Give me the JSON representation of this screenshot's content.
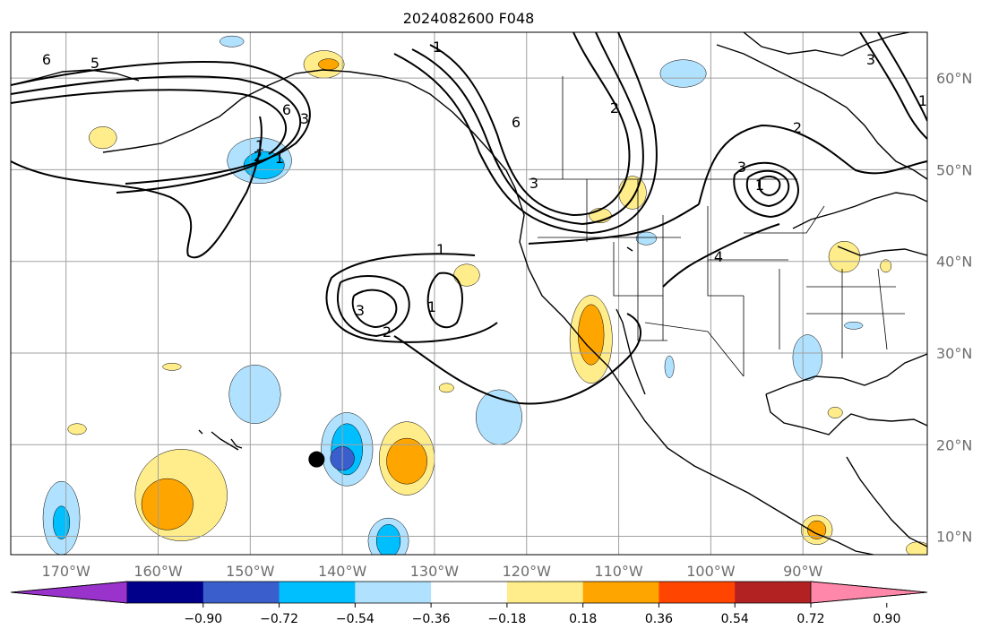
{
  "title": "2024082600 F048",
  "lat_ticks": [
    {
      "label": "60°N",
      "lat": 60
    },
    {
      "label": "50°N",
      "lat": 50
    },
    {
      "label": "40°N",
      "lat": 40
    },
    {
      "label": "30°N",
      "lat": 30
    },
    {
      "label": "20°N",
      "lat": 20
    },
    {
      "label": "10°N",
      "lat": 10
    }
  ],
  "lon_ticks": [
    {
      "label": "170°W",
      "lon": -170
    },
    {
      "label": "160°W",
      "lon": -160
    },
    {
      "label": "150°W",
      "lon": -150
    },
    {
      "label": "140°W",
      "lon": -140
    },
    {
      "label": "130°W",
      "lon": -130
    },
    {
      "label": "120°W",
      "lon": -120
    },
    {
      "label": "110°W",
      "lon": -110
    },
    {
      "label": "100°W",
      "lon": -100
    },
    {
      "label": "90°W",
      "lon": -90
    }
  ],
  "extent": {
    "lon_min": -176,
    "lon_max": -76.5,
    "lat_min": 8,
    "lat_max": 65
  },
  "colorbar": {
    "ticks": [
      "−0.90",
      "−0.72",
      "−0.54",
      "−0.36",
      "−0.18",
      "0.18",
      "0.36",
      "0.54",
      "0.72",
      "0.90"
    ],
    "colors": [
      "#9933cc",
      "#00008b",
      "#3a5fcd",
      "#00bfff",
      "#b0e2ff",
      "#ffffff",
      "#ffec8b",
      "#ffa500",
      "#ff4500",
      "#b22222",
      "#ff88aa"
    ]
  },
  "contour_labels": [
    "6",
    "5",
    "1",
    "6",
    "3",
    "2",
    "1",
    "1",
    "6",
    "3",
    "2",
    "3",
    "1",
    "2",
    "3",
    "1",
    "1",
    "2",
    "3",
    "4",
    "1"
  ],
  "marker": {
    "lon": -142.8,
    "lat": 18.4
  },
  "fills": [
    {
      "color": "#b0e2ff",
      "lon": -149,
      "lat": 51,
      "rx": 3.5,
      "ry": 2.5
    },
    {
      "color": "#00bfff",
      "lon": -148.5,
      "lat": 50.5,
      "rx": 2.2,
      "ry": 1.5
    },
    {
      "color": "#b0e2ff",
      "lon": -149.5,
      "lat": 25.5,
      "rx": 2.8,
      "ry": 3.2
    },
    {
      "color": "#b0e2ff",
      "lon": -139.5,
      "lat": 19.5,
      "rx": 2.8,
      "ry": 4
    },
    {
      "color": "#00bfff",
      "lon": -139.5,
      "lat": 19.5,
      "rx": 1.7,
      "ry": 2.8
    },
    {
      "color": "#3a5fcd",
      "lon": -140,
      "lat": 18.5,
      "rx": 1.3,
      "ry": 1.3
    },
    {
      "color": "#ffec8b",
      "lon": -133,
      "lat": 18.5,
      "rx": 3,
      "ry": 4
    },
    {
      "color": "#ffa500",
      "lon": -133,
      "lat": 18.2,
      "rx": 2.2,
      "ry": 2.5
    },
    {
      "color": "#ffec8b",
      "lon": -157.5,
      "lat": 14.5,
      "rx": 5,
      "ry": 5
    },
    {
      "color": "#ffa500",
      "lon": -159,
      "lat": 13.5,
      "rx": 2.8,
      "ry": 2.8
    },
    {
      "color": "#b0e2ff",
      "lon": -170.5,
      "lat": 12,
      "rx": 2,
      "ry": 4
    },
    {
      "color": "#00bfff",
      "lon": -170.5,
      "lat": 11.5,
      "rx": 0.9,
      "ry": 1.8
    },
    {
      "color": "#b0e2ff",
      "lon": -135,
      "lat": 9.5,
      "rx": 2.2,
      "ry": 2.5
    },
    {
      "color": "#00bfff",
      "lon": -135,
      "lat": 9.5,
      "rx": 1.3,
      "ry": 1.8
    },
    {
      "color": "#b0e2ff",
      "lon": -123,
      "lat": 23,
      "rx": 2.5,
      "ry": 3
    },
    {
      "color": "#ffec8b",
      "lon": -113,
      "lat": 31.5,
      "rx": 2.3,
      "ry": 4.8
    },
    {
      "color": "#ffa500",
      "lon": -113,
      "lat": 32,
      "rx": 1.4,
      "ry": 3.3
    },
    {
      "color": "#ffec8b",
      "lon": -142,
      "lat": 61.5,
      "rx": 2.2,
      "ry": 1.5
    },
    {
      "color": "#ffa500",
      "lon": -141.5,
      "lat": 61.5,
      "rx": 1.1,
      "ry": 0.6
    },
    {
      "color": "#b0e2ff",
      "lon": -103,
      "lat": 60.5,
      "rx": 2.5,
      "ry": 1.5
    },
    {
      "color": "#b0e2ff",
      "lon": -152,
      "lat": 64,
      "rx": 1.3,
      "ry": 0.6
    },
    {
      "color": "#ffec8b",
      "lon": -166,
      "lat": 53.5,
      "rx": 1.5,
      "ry": 1.2
    },
    {
      "color": "#ffec8b",
      "lon": -108.5,
      "lat": 47.5,
      "rx": 1.5,
      "ry": 1.8
    },
    {
      "color": "#ffec8b",
      "lon": -112,
      "lat": 45,
      "rx": 1.2,
      "ry": 0.8
    },
    {
      "color": "#ffec8b",
      "lon": -126.5,
      "lat": 38.5,
      "rx": 1.4,
      "ry": 1.2
    },
    {
      "color": "#b0e2ff",
      "lon": -107,
      "lat": 42.5,
      "rx": 1.1,
      "ry": 0.7
    },
    {
      "color": "#ffec8b",
      "lon": -85.5,
      "lat": 40.5,
      "rx": 1.7,
      "ry": 1.7
    },
    {
      "color": "#ffec8b",
      "lon": -81,
      "lat": 39.5,
      "rx": 0.6,
      "ry": 0.7
    },
    {
      "color": "#b0e2ff",
      "lon": -89.5,
      "lat": 29.5,
      "rx": 1.6,
      "ry": 2.5
    },
    {
      "color": "#b0e2ff",
      "lon": -104.5,
      "lat": 28.5,
      "rx": 0.5,
      "ry": 1.2
    },
    {
      "color": "#ffec8b",
      "lon": -88.5,
      "lat": 10.7,
      "rx": 1.7,
      "ry": 1.6
    },
    {
      "color": "#ffa500",
      "lon": -88.5,
      "lat": 10.7,
      "rx": 1,
      "ry": 1
    },
    {
      "color": "#ffec8b",
      "lon": -77.5,
      "lat": 8.6,
      "rx": 1.3,
      "ry": 0.8
    },
    {
      "color": "#ffec8b",
      "lon": -128.7,
      "lat": 26.2,
      "rx": 0.8,
      "ry": 0.5
    },
    {
      "color": "#ffec8b",
      "lon": -168.8,
      "lat": 21.7,
      "rx": 1,
      "ry": 0.6
    },
    {
      "color": "#ffec8b",
      "lon": -158.5,
      "lat": 28.5,
      "rx": 1,
      "ry": 0.4
    },
    {
      "color": "#b0e2ff",
      "lon": -84.5,
      "lat": 33,
      "rx": 1,
      "ry": 0.4
    },
    {
      "color": "#ffec8b",
      "lon": -86.5,
      "lat": 23.5,
      "rx": 0.8,
      "ry": 0.6
    }
  ]
}
